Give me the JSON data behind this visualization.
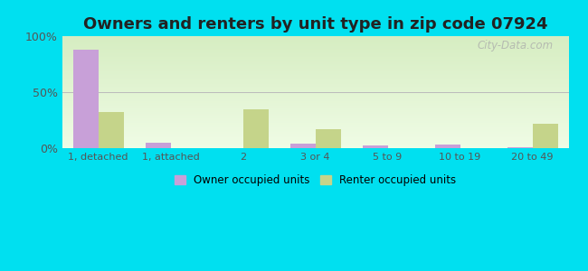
{
  "title": "Owners and renters by unit type in zip code 07924",
  "categories": [
    "1, detached",
    "1, attached",
    "2",
    "3 or 4",
    "5 to 9",
    "10 to 19",
    "20 to 49"
  ],
  "owner_values": [
    88,
    5,
    0,
    4,
    2,
    3,
    1
  ],
  "renter_values": [
    32,
    0,
    35,
    17,
    0,
    0,
    22
  ],
  "owner_color": "#c8a0d8",
  "renter_color": "#c5d48a",
  "bg_outer": "#00e0f0",
  "title_fontsize": 13,
  "legend_owner": "Owner occupied units",
  "legend_renter": "Renter occupied units",
  "ylim": [
    0,
    100
  ],
  "yticks": [
    0,
    50,
    100
  ],
  "ytick_labels": [
    "0%",
    "50%",
    "100%"
  ],
  "bar_width": 0.35,
  "watermark": "City-Data.com"
}
